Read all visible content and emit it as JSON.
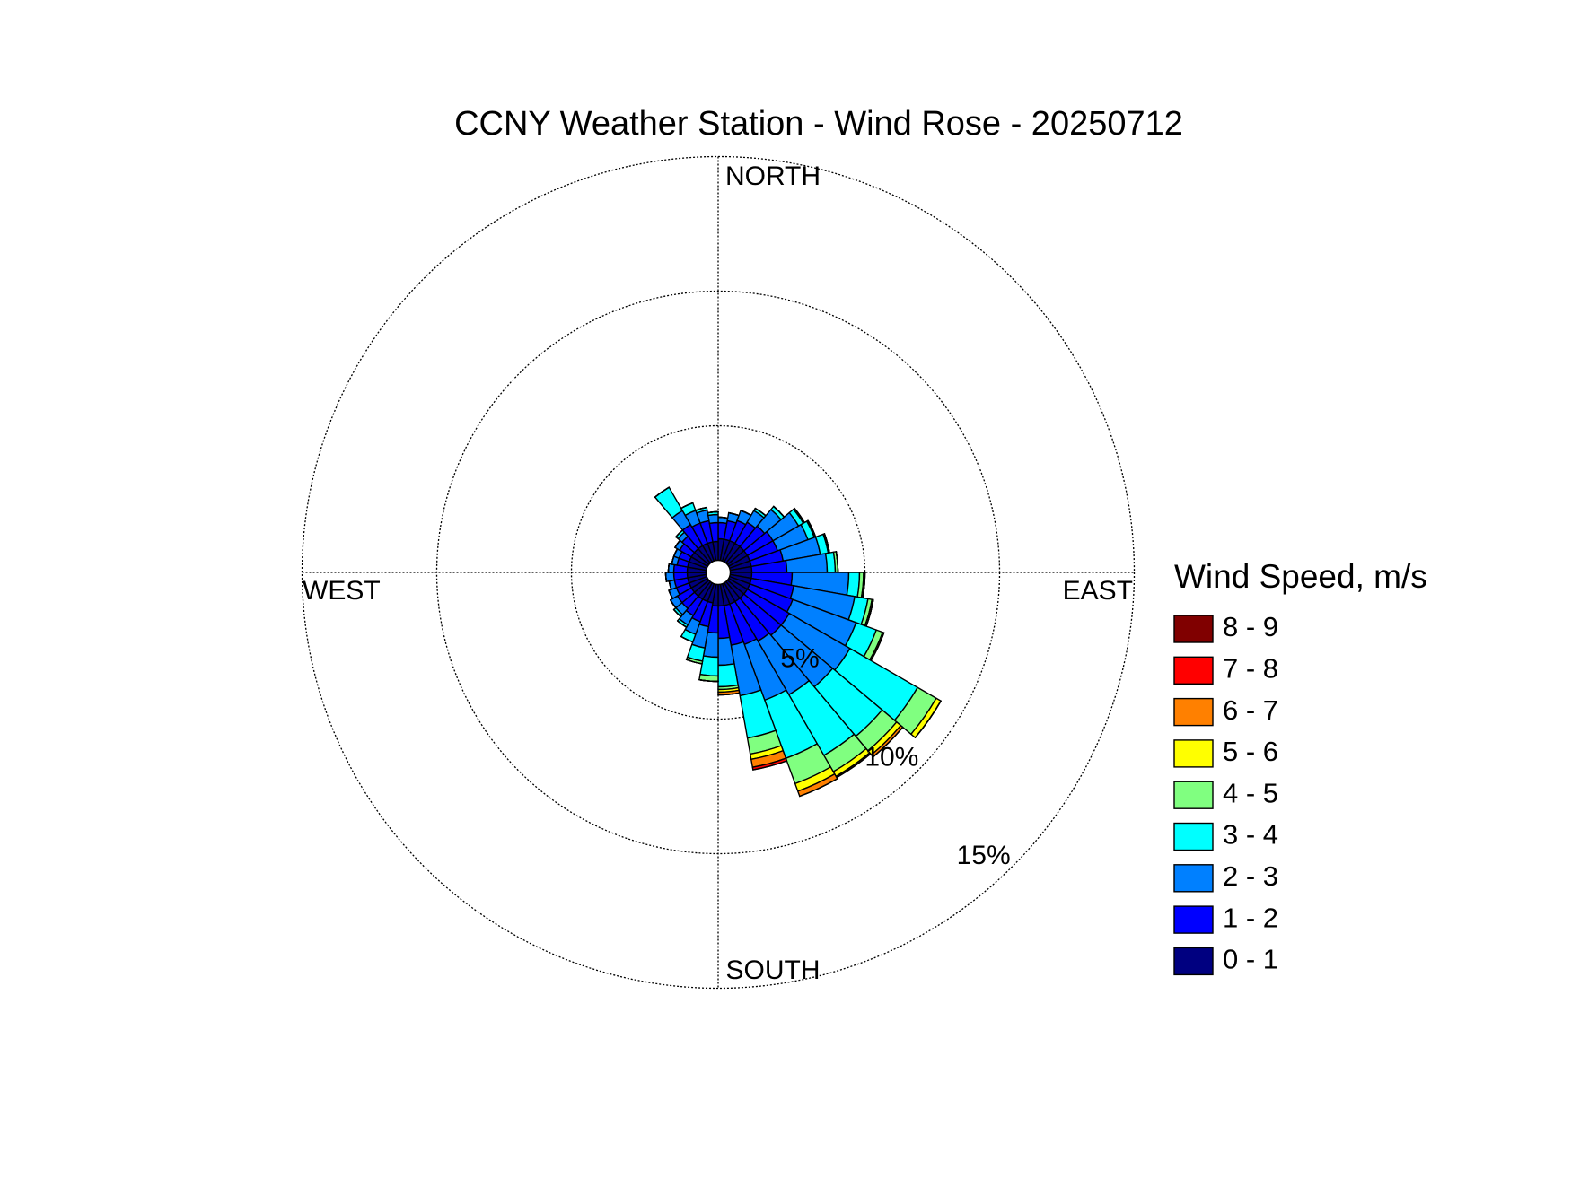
{
  "chart_data": {
    "type": "windrose",
    "title": "CCNY Weather Station - Wind Rose - 20250712",
    "legend_title": "Wind Speed, m/s",
    "direction_labels": {
      "north": "NORTH",
      "east": "EAST",
      "south": "SOUTH",
      "west": "WEST"
    },
    "x": [
      5,
      15,
      25,
      35,
      45,
      55,
      65,
      75,
      85,
      95,
      105,
      115,
      125,
      135,
      145,
      155,
      165,
      175,
      185,
      195,
      205,
      215,
      225,
      235,
      245,
      255,
      265,
      275,
      285,
      295,
      305,
      315,
      325,
      335,
      345,
      355
    ],
    "series": [
      {
        "name": "0 - 1",
        "color": "#000080",
        "values": [
          0.8,
          0.8,
          0.8,
          0.8,
          0.8,
          0.8,
          0.8,
          0.8,
          0.8,
          0.8,
          0.8,
          0.8,
          0.8,
          0.8,
          0.8,
          0.8,
          0.8,
          0.8,
          0.8,
          0.7,
          0.7,
          0.7,
          0.7,
          0.7,
          0.7,
          0.7,
          0.7,
          0.7,
          0.7,
          0.7,
          0.7,
          0.7,
          0.7,
          0.7,
          0.7,
          0.7
        ]
      },
      {
        "name": "1 - 2",
        "color": "#0000ff",
        "values": [
          0.6,
          0.7,
          0.8,
          0.9,
          1.0,
          1.1,
          1.1,
          1.2,
          1.3,
          1.5,
          1.6,
          1.7,
          1.8,
          1.8,
          1.7,
          1.6,
          1.5,
          1.2,
          1.0,
          0.9,
          0.8,
          0.7,
          0.6,
          0.6,
          0.5,
          0.5,
          0.5,
          0.5,
          0.4,
          0.4,
          0.5,
          0.6,
          0.9,
          0.8,
          0.8,
          0.7
        ]
      },
      {
        "name": "2 - 3",
        "color": "#0080ff",
        "values": [
          0.2,
          0.3,
          0.4,
          0.5,
          0.8,
          1.1,
          1.2,
          1.4,
          1.5,
          2.1,
          2.3,
          2.5,
          2.6,
          2.5,
          2.3,
          2.2,
          1.9,
          1.0,
          0.9,
          0.8,
          0.5,
          0.4,
          0.3,
          0.3,
          0.3,
          0.2,
          0.3,
          0.2,
          0.2,
          0.2,
          0.2,
          0.2,
          0.6,
          0.5,
          0.4,
          0.3
        ]
      },
      {
        "name": "3 - 4",
        "color": "#00ffff",
        "values": [
          0,
          0,
          0,
          0.1,
          0.15,
          0.2,
          0.25,
          0.3,
          0.3,
          0.4,
          0.5,
          0.8,
          2.9,
          2.4,
          2.6,
          2.3,
          1.6,
          0.8,
          0.7,
          0.5,
          0.3,
          0.1,
          0.1,
          0,
          0,
          0,
          0,
          0,
          0,
          0,
          0,
          0.1,
          1.0,
          0.3,
          0.1,
          0.1
        ]
      },
      {
        "name": "4 - 5",
        "color": "#80ff80",
        "values": [
          0,
          0,
          0,
          0,
          0,
          0.05,
          0.05,
          0.05,
          0.1,
          0.15,
          0.15,
          0.25,
          0.8,
          0.7,
          0.7,
          1.0,
          0.6,
          0.1,
          0.2,
          0.1,
          0,
          0,
          0,
          0,
          0,
          0,
          0,
          0,
          0,
          0,
          0,
          0,
          0,
          0,
          0,
          0
        ]
      },
      {
        "name": "5 - 6",
        "color": "#ffff00",
        "values": [
          0,
          0,
          0,
          0,
          0,
          0,
          0,
          0,
          0,
          0.05,
          0.05,
          0.05,
          0.2,
          0.2,
          0.2,
          0.3,
          0.2,
          0.1,
          0,
          0,
          0,
          0,
          0,
          0,
          0,
          0,
          0,
          0,
          0,
          0,
          0,
          0,
          0,
          0,
          0,
          0
        ]
      },
      {
        "name": "6 - 7",
        "color": "#ff8000",
        "values": [
          0,
          0,
          0,
          0,
          0,
          0,
          0,
          0,
          0,
          0,
          0,
          0,
          0,
          0.1,
          0.05,
          0.2,
          0.3,
          0.1,
          0,
          0,
          0,
          0,
          0,
          0,
          0,
          0,
          0,
          0,
          0,
          0,
          0,
          0,
          0,
          0,
          0,
          0
        ]
      },
      {
        "name": "7 - 8",
        "color": "#ff0000",
        "values": [
          0,
          0,
          0,
          0,
          0,
          0,
          0,
          0,
          0,
          0,
          0,
          0,
          0,
          0,
          0,
          0,
          0.1,
          0,
          0,
          0,
          0,
          0,
          0,
          0,
          0,
          0,
          0,
          0,
          0,
          0,
          0,
          0,
          0,
          0,
          0,
          0
        ]
      },
      {
        "name": "8 - 9",
        "color": "#800000",
        "values": [
          0,
          0,
          0,
          0,
          0,
          0,
          0,
          0,
          0,
          0,
          0,
          0,
          0,
          0,
          0,
          0,
          0,
          0,
          0,
          0,
          0,
          0,
          0,
          0,
          0,
          0,
          0,
          0,
          0,
          0,
          0,
          0,
          0,
          0,
          0,
          0
        ]
      }
    ],
    "rlim": [
      0,
      15
    ],
    "rticks": [
      {
        "value": 5,
        "label": "5%"
      },
      {
        "value": 10,
        "label": "10%"
      },
      {
        "value": 15,
        "label": "15%"
      }
    ],
    "grid": true
  }
}
